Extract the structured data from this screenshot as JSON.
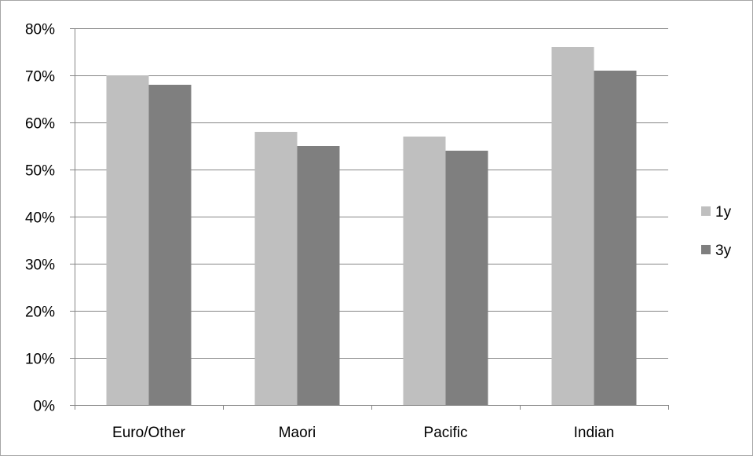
{
  "chart_data": {
    "type": "bar",
    "categories": [
      "Euro/Other",
      "Maori",
      "Pacific",
      "Indian"
    ],
    "series": [
      {
        "name": "1y",
        "values": [
          70,
          58,
          57,
          76
        ],
        "color": "#bfbfbf"
      },
      {
        "name": "3y",
        "values": [
          68,
          55,
          54,
          71
        ],
        "color": "#7f7f7f"
      }
    ],
    "ylim": [
      0,
      80
    ],
    "yticks": [
      0,
      10,
      20,
      30,
      40,
      50,
      60,
      70,
      80
    ],
    "ytick_labels": [
      "0%",
      "10%",
      "20%",
      "30%",
      "40%",
      "50%",
      "60%",
      "70%",
      "80%"
    ],
    "grid": true,
    "legend_position": "right",
    "title": "",
    "xlabel": "",
    "ylabel": ""
  }
}
